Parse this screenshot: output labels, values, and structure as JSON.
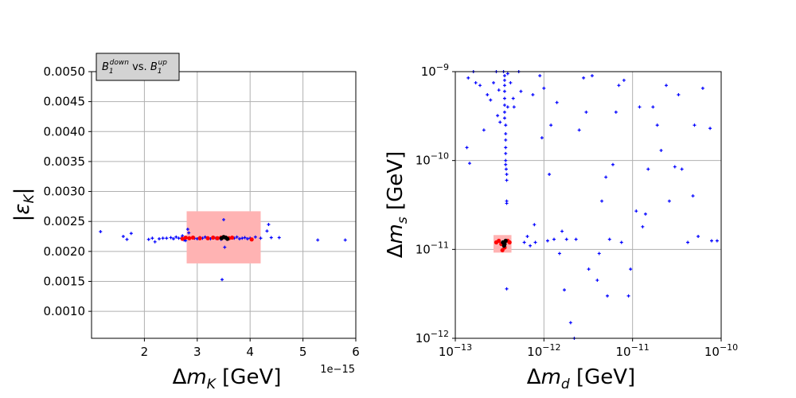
{
  "chart_data": [
    {
      "type": "scatter",
      "xlabel": "Δm_K [GeV]",
      "ylabel": "|ε_K|",
      "xscale": "linear",
      "x_offset_label": "1e−15",
      "annotation": "B_1^down vs. B_1^up",
      "annotation_parts": {
        "b1": "B",
        "sub1": "1",
        "sup1": "down",
        "mid": " vs. ",
        "b2": "B",
        "sub2": "1",
        "sup2": "up"
      },
      "xlim": [
        1.0,
        6.0
      ],
      "ylim": [
        0.00055,
        0.005
      ],
      "xticks": [
        2,
        3,
        4,
        5,
        6
      ],
      "xtick_labels": [
        "2",
        "3",
        "4",
        "5",
        "6"
      ],
      "yticks": [
        0.001,
        0.0015,
        0.002,
        0.0025,
        0.003,
        0.0035,
        0.004,
        0.0045,
        0.005
      ],
      "ytick_labels": [
        "0.0010",
        "0.0015",
        "0.0020",
        "0.0025",
        "0.0030",
        "0.0035",
        "0.0040",
        "0.0045",
        "0.0050"
      ],
      "grid": true,
      "band": {
        "x": [
          2.8,
          4.2
        ],
        "y": [
          0.0018,
          0.00267
        ],
        "color": "#ffb3b3"
      },
      "series": [
        {
          "name": "blue",
          "color": "#0000ff",
          "marker": "plus",
          "points": [
            [
              1.17,
              0.00233
            ],
            [
              1.6,
              0.00225
            ],
            [
              1.67,
              0.0022
            ],
            [
              1.75,
              0.0023
            ],
            [
              2.08,
              0.0022
            ],
            [
              2.15,
              0.00222
            ],
            [
              2.2,
              0.00216
            ],
            [
              2.28,
              0.00221
            ],
            [
              2.35,
              0.00222
            ],
            [
              2.42,
              0.00222
            ],
            [
              2.5,
              0.00223
            ],
            [
              2.55,
              0.00221
            ],
            [
              2.6,
              0.00224
            ],
            [
              2.65,
              0.00222
            ],
            [
              2.7,
              0.00222
            ],
            [
              2.72,
              0.00226
            ],
            [
              2.75,
              0.00219
            ],
            [
              2.78,
              0.00218
            ],
            [
              2.8,
              0.00223
            ],
            [
              2.82,
              0.00237
            ],
            [
              2.84,
              0.00231
            ],
            [
              2.86,
              0.00222
            ],
            [
              2.9,
              0.00223
            ],
            [
              2.95,
              0.00222
            ],
            [
              3.0,
              0.00221
            ],
            [
              3.05,
              0.00223
            ],
            [
              3.1,
              0.00222
            ],
            [
              3.15,
              0.00224
            ],
            [
              3.2,
              0.00222
            ],
            [
              3.25,
              0.00221
            ],
            [
              3.3,
              0.00223
            ],
            [
              3.35,
              0.00222
            ],
            [
              3.4,
              0.00222
            ],
            [
              3.45,
              0.0022
            ],
            [
              3.5,
              0.00253
            ],
            [
              3.52,
              0.00207
            ],
            [
              3.47,
              0.00153
            ],
            [
              3.6,
              0.00221
            ],
            [
              3.65,
              0.00223
            ],
            [
              3.7,
              0.00222
            ],
            [
              3.75,
              0.00224
            ],
            [
              3.8,
              0.00221
            ],
            [
              3.85,
              0.00222
            ],
            [
              3.9,
              0.00223
            ],
            [
              3.95,
              0.00221
            ],
            [
              4.0,
              0.00222
            ],
            [
              4.1,
              0.00224
            ],
            [
              4.2,
              0.00222
            ],
            [
              4.32,
              0.00234
            ],
            [
              4.35,
              0.00245
            ],
            [
              4.4,
              0.00223
            ],
            [
              4.55,
              0.00223
            ],
            [
              5.28,
              0.00219
            ],
            [
              5.8,
              0.00219
            ]
          ]
        },
        {
          "name": "red",
          "color": "#ff0000",
          "marker": "dot",
          "points": [
            [
              2.72,
              0.00221
            ],
            [
              2.78,
              0.00223
            ],
            [
              2.85,
              0.00222
            ],
            [
              2.92,
              0.00223
            ],
            [
              3.05,
              0.00222
            ],
            [
              3.2,
              0.00222
            ],
            [
              3.3,
              0.00223
            ],
            [
              3.38,
              0.00222
            ],
            [
              3.45,
              0.00223
            ],
            [
              3.6,
              0.00222
            ],
            [
              3.66,
              0.00223
            ],
            [
              4.03,
              0.0022
            ]
          ]
        },
        {
          "name": "black",
          "color": "#000000",
          "marker": "dot",
          "points": [
            [
              3.46,
              0.00222
            ],
            [
              3.5,
              0.00224
            ],
            [
              3.54,
              0.00223
            ],
            [
              3.57,
              0.00221
            ]
          ]
        }
      ]
    },
    {
      "type": "scatter",
      "xlabel": "Δm_d [GeV]",
      "ylabel": "Δm_s [GeV]",
      "xscale": "log",
      "yscale": "log",
      "xlim": [
        1e-13,
        1e-10
      ],
      "ylim": [
        1e-12,
        1e-09
      ],
      "xtick_labels": [
        {
          "base": "10",
          "exp": "−13"
        },
        {
          "base": "10",
          "exp": "−12"
        },
        {
          "base": "10",
          "exp": "−11"
        },
        {
          "base": "10",
          "exp": "−10"
        }
      ],
      "ytick_labels": [
        {
          "base": "10",
          "exp": "−12"
        },
        {
          "base": "10",
          "exp": "−11"
        },
        {
          "base": "10",
          "exp": "−10"
        },
        {
          "base": "10",
          "exp": "−9"
        }
      ],
      "grid": true,
      "band": {
        "x": [
          2.7e-13,
          4.3e-13
        ],
        "y": [
          9.2e-12,
          1.45e-11
        ],
        "color": "#ffb3b3"
      },
      "series": [
        {
          "name": "blue",
          "color": "#0000ff",
          "marker": "plus",
          "points": [
            [
              1.4e-13,
              8.5e-10
            ],
            [
              1.6e-13,
              1e-09
            ],
            [
              1.35e-13,
              1.4e-10
            ],
            [
              1.45e-13,
              9.3e-11
            ],
            [
              1.7e-13,
              7.5e-10
            ],
            [
              1.9e-13,
              7e-10
            ],
            [
              2.1e-13,
              2.2e-10
            ],
            [
              2.3e-13,
              5.5e-10
            ],
            [
              2.5e-13,
              4.8e-10
            ],
            [
              2.7e-13,
              7.5e-10
            ],
            [
              2.9e-13,
              1e-09
            ],
            [
              3e-13,
              3.2e-10
            ],
            [
              3.1e-13,
              6.2e-10
            ],
            [
              3.2e-13,
              2.7e-10
            ],
            [
              3.5e-13,
              1e-09
            ],
            [
              3.6e-13,
              9e-10
            ],
            [
              3.6e-13,
              8e-10
            ],
            [
              3.6e-13,
              7e-10
            ],
            [
              3.6e-13,
              6e-10
            ],
            [
              3.6e-13,
              5e-10
            ],
            [
              3.6e-13,
              4.2e-10
            ],
            [
              3.6e-13,
              3.5e-10
            ],
            [
              3.6e-13,
              3e-10
            ],
            [
              3.7e-13,
              2.5e-10
            ],
            [
              3.7e-13,
              2e-10
            ],
            [
              3.7e-13,
              1.7e-10
            ],
            [
              3.7e-13,
              1.4e-10
            ],
            [
              3.7e-13,
              1.2e-10
            ],
            [
              3.7e-13,
              1e-10
            ],
            [
              3.7e-13,
              9e-11
            ],
            [
              3.75e-13,
              8e-11
            ],
            [
              3.8e-13,
              7e-11
            ],
            [
              3.8e-13,
              6e-11
            ],
            [
              3.8e-13,
              3.5e-11
            ],
            [
              3.8e-13,
              3.3e-11
            ],
            [
              3.8e-13,
              3.6e-12
            ],
            [
              3.9e-13,
              9.5e-10
            ],
            [
              3.9e-13,
              4e-10
            ],
            [
              4.2e-13,
              7.5e-10
            ],
            [
              4.5e-13,
              5e-10
            ],
            [
              4.6e-13,
              4e-10
            ],
            [
              5.2e-13,
              1e-09
            ],
            [
              5.5e-13,
              6e-10
            ],
            [
              6e-13,
              1.2e-11
            ],
            [
              6.5e-13,
              1.4e-11
            ],
            [
              7e-13,
              1.1e-11
            ],
            [
              7.5e-13,
              5.5e-10
            ],
            [
              7.8e-13,
              1.9e-11
            ],
            [
              8e-13,
              1.2e-11
            ],
            [
              9e-13,
              9e-10
            ],
            [
              9.5e-13,
              1.8e-10
            ],
            [
              1e-12,
              6.5e-10
            ],
            [
              1.1e-12,
              1.25e-11
            ],
            [
              1.15e-12,
              7e-11
            ],
            [
              1.2e-12,
              2.5e-10
            ],
            [
              1.3e-12,
              1.3e-11
            ],
            [
              1.4e-12,
              4.5e-10
            ],
            [
              1.5e-12,
              9e-12
            ],
            [
              1.6e-12,
              1.6e-11
            ],
            [
              1.7e-12,
              3.5e-12
            ],
            [
              1.8e-12,
              1.3e-11
            ],
            [
              2e-12,
              1.5e-12
            ],
            [
              2.2e-12,
              1e-12
            ],
            [
              2.3e-12,
              1.3e-11
            ],
            [
              2.5e-12,
              2.2e-10
            ],
            [
              2.8e-12,
              8.5e-10
            ],
            [
              3e-12,
              3.5e-10
            ],
            [
              3.2e-12,
              6e-12
            ],
            [
              3.5e-12,
              9e-10
            ],
            [
              4e-12,
              4.5e-12
            ],
            [
              4.2e-12,
              9e-12
            ],
            [
              4.5e-12,
              3.5e-11
            ],
            [
              5e-12,
              6.5e-11
            ],
            [
              5.2e-12,
              3e-12
            ],
            [
              5.5e-12,
              1.3e-11
            ],
            [
              6e-12,
              9e-11
            ],
            [
              6.5e-12,
              3.5e-10
            ],
            [
              7e-12,
              7e-10
            ],
            [
              7.5e-12,
              1.2e-11
            ],
            [
              8e-12,
              8e-10
            ],
            [
              9e-12,
              3e-12
            ],
            [
              9.5e-12,
              6e-12
            ],
            [
              1.1e-11,
              2.7e-11
            ],
            [
              1.2e-11,
              4e-10
            ],
            [
              1.3e-11,
              1.8e-11
            ],
            [
              1.4e-11,
              2.5e-11
            ],
            [
              1.5e-11,
              8e-11
            ],
            [
              1.7e-11,
              4e-10
            ],
            [
              1.9e-11,
              2.5e-10
            ],
            [
              2.1e-11,
              1.3e-10
            ],
            [
              2.4e-11,
              7e-10
            ],
            [
              2.6e-11,
              3.5e-11
            ],
            [
              3e-11,
              8.5e-11
            ],
            [
              3.3e-11,
              5.5e-10
            ],
            [
              3.6e-11,
              8e-11
            ],
            [
              4.2e-11,
              1.2e-11
            ],
            [
              4.8e-11,
              4e-11
            ],
            [
              5e-11,
              2.5e-10
            ],
            [
              5.5e-11,
              1.4e-11
            ],
            [
              6.2e-11,
              6.5e-10
            ],
            [
              7.5e-11,
              2.3e-10
            ],
            [
              7.8e-11,
              1.25e-11
            ],
            [
              9e-11,
              1.25e-11
            ]
          ]
        },
        {
          "name": "red",
          "color": "#ff0000",
          "marker": "dot",
          "points": [
            [
              2.9e-13,
              1.2e-11
            ],
            [
              3.1e-13,
              1.25e-11
            ],
            [
              3.3e-13,
              1.15e-11
            ],
            [
              3.4e-13,
              9.8e-12
            ],
            [
              3.6e-13,
              1.05e-11
            ],
            [
              3.9e-13,
              1.25e-11
            ],
            [
              4.1e-13,
              1.2e-11
            ]
          ]
        },
        {
          "name": "black",
          "color": "#000000",
          "marker": "dot",
          "points": [
            [
              3.45e-13,
              1.2e-11
            ],
            [
              3.6e-13,
              1.15e-11
            ],
            [
              3.7e-13,
              1.25e-11
            ],
            [
              3.55e-13,
              1.1e-11
            ]
          ]
        }
      ]
    }
  ]
}
